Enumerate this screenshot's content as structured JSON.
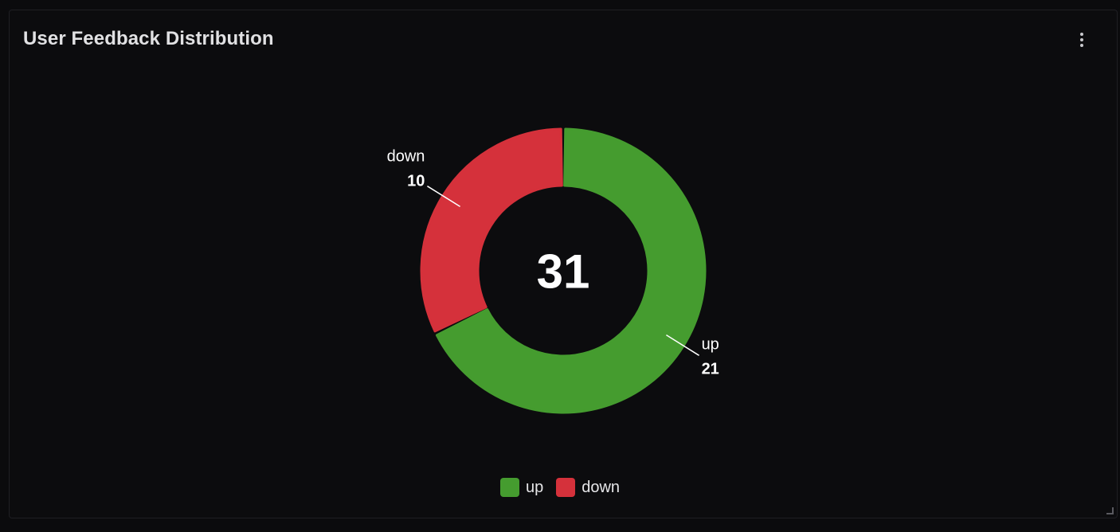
{
  "panel": {
    "title": "User Feedback Distribution",
    "menu_icon": "more-vertical-icon",
    "resize_icon": "resize-corner-icon"
  },
  "chart_data": {
    "type": "pie",
    "style": "donut",
    "title": "User Feedback Distribution",
    "total": "31",
    "slices": [
      {
        "name": "up",
        "value": 21,
        "color": "#459c2f"
      },
      {
        "name": "down",
        "value": 10,
        "color": "#d5313b"
      }
    ],
    "legend_placement": "bottom-center"
  }
}
